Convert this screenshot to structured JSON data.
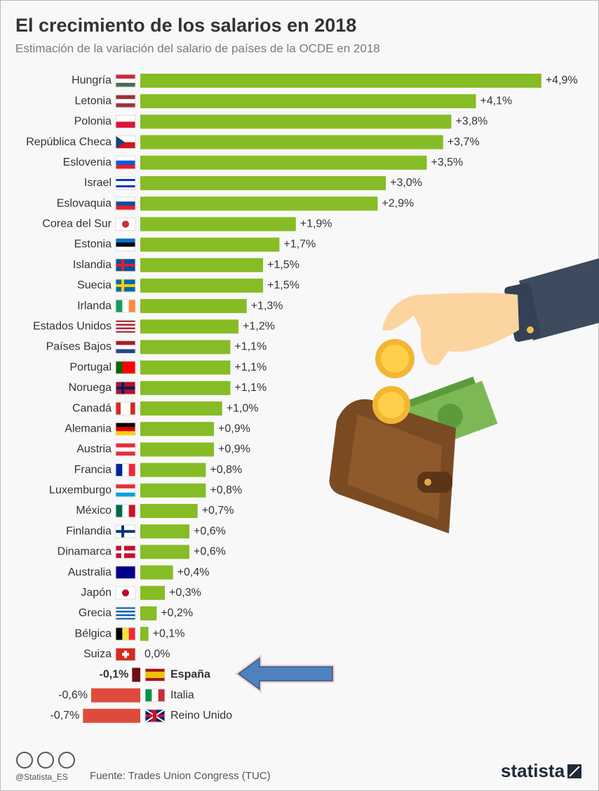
{
  "chart_data": {
    "type": "bar",
    "orientation": "horizontal",
    "title": "El crecimiento de los salarios en 2018",
    "subtitle": "Estimación de la variación del salario de países de la OCDE en 2018",
    "categories": [
      "Hungría",
      "Letonia",
      "Polonia",
      "República Checa",
      "Eslovenia",
      "Israel",
      "Eslovaquia",
      "Corea del Sur",
      "Estonia",
      "Islandia",
      "Suecia",
      "Irlanda",
      "Estados Unidos",
      "Países Bajos",
      "Portugal",
      "Noruega",
      "Canadá",
      "Alemania",
      "Austria",
      "Francia",
      "Luxemburgo",
      "México",
      "Finlandia",
      "Dinamarca",
      "Australia",
      "Japón",
      "Grecia",
      "Bélgica",
      "Suiza",
      "España",
      "Italia",
      "Reino Unido"
    ],
    "values": [
      4.9,
      4.1,
      3.8,
      3.7,
      3.5,
      3.0,
      2.9,
      1.9,
      1.7,
      1.5,
      1.5,
      1.3,
      1.2,
      1.1,
      1.1,
      1.1,
      1.0,
      0.9,
      0.9,
      0.8,
      0.8,
      0.7,
      0.6,
      0.6,
      0.4,
      0.3,
      0.2,
      0.1,
      0.0,
      -0.1,
      -0.6,
      -0.7
    ],
    "value_labels": [
      "+4,9%",
      "+4,1%",
      "+3,8%",
      "+3,7%",
      "+3,5%",
      "+3,0%",
      "+2,9%",
      "+1,9%",
      "+1,7%",
      "+1,5%",
      "+1,5%",
      "+1,3%",
      "+1,2%",
      "+1,1%",
      "+1,1%",
      "+1,1%",
      "+1,0%",
      "+0,9%",
      "+0,9%",
      "+0,8%",
      "+0,8%",
      "+0,7%",
      "+0,6%",
      "+0,6%",
      "+0,4%",
      "+0,3%",
      "+0,2%",
      "+0,1%",
      "0,0%",
      "-0,1%",
      "-0,6%",
      "-0,7%"
    ],
    "colors": {
      "positive": "#86bc25",
      "negative": "#e04a3c",
      "highlight": "#6e0f12"
    },
    "highlight": "España"
  },
  "footer": {
    "handle": "@Statista_ES",
    "source": "Fuente: Trades Union Congress (TUC)",
    "brand": "statista"
  }
}
